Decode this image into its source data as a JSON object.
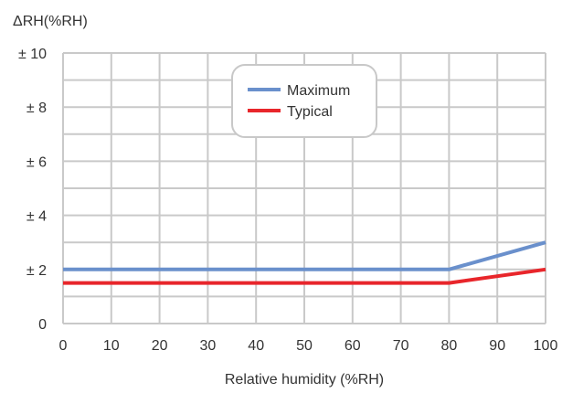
{
  "chart_data": {
    "type": "line",
    "ylabel": "ΔRH(%RH)",
    "xlabel": "Relative humidity (%RH)",
    "x_ticks": [
      "0",
      "10",
      "20",
      "30",
      "40",
      "50",
      "60",
      "70",
      "80",
      "90",
      "100"
    ],
    "y_ticks": [
      "0",
      "± 2",
      "± 4",
      "± 6",
      "± 8",
      "± 10"
    ],
    "xlim": [
      0,
      100
    ],
    "ylim": [
      0,
      10
    ],
    "grid": true,
    "legend_position": "top-center",
    "series": [
      {
        "name": "Maximum",
        "color": "#6a90cc",
        "x": [
          0,
          80,
          100
        ],
        "y": [
          2,
          2,
          3
        ]
      },
      {
        "name": "Typical",
        "color": "#e8262b",
        "x": [
          0,
          80,
          100
        ],
        "y": [
          1.5,
          1.5,
          2
        ]
      }
    ]
  }
}
